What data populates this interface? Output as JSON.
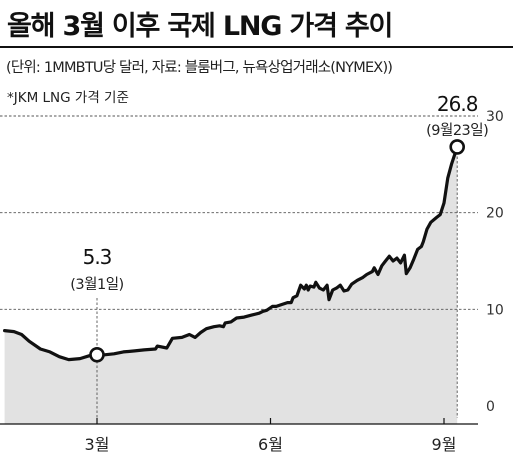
{
  "header": {
    "title": "올해 3월 이후 국제 LNG 가격 추이",
    "subtitle": "(단위: 1MMBTU당 달러, 자료: 블룸버그, 뉴욕상업거래소(NYMEX))"
  },
  "colors": {
    "line": "#111111",
    "area": "#e2e2e2",
    "grid": "#555555",
    "marker_fill": "#ffffff"
  },
  "chart_data": {
    "type": "area",
    "footnote": "*JKM LNG 가격 기준",
    "y_axis": {
      "ticks": [
        0,
        10,
        20,
        30
      ],
      "ylim": [
        0,
        30
      ],
      "side": "right"
    },
    "x_axis": {
      "ticks": [
        {
          "label": "3월",
          "day": 0
        },
        {
          "label": "6월",
          "day": 92
        },
        {
          "label": "9월",
          "day": 184
        }
      ],
      "xlim": [
        -49,
        206
      ]
    },
    "grid": "dashed horizontal",
    "series": [
      {
        "values": [
          [
            -49,
            7.8
          ],
          [
            -44,
            7.7
          ],
          [
            -40,
            7.4
          ],
          [
            -36,
            6.7
          ],
          [
            -30,
            5.9
          ],
          [
            -25,
            5.6
          ],
          [
            -20,
            5.1
          ],
          [
            -15,
            4.8
          ],
          [
            -9,
            4.9
          ],
          [
            -4,
            5.2
          ],
          [
            0,
            5.3
          ],
          [
            4,
            5.3
          ],
          [
            9,
            5.4
          ],
          [
            14,
            5.6
          ],
          [
            20,
            5.7
          ],
          [
            25,
            5.8
          ],
          [
            31,
            5.9
          ],
          [
            32,
            6.2
          ],
          [
            37,
            6.0
          ],
          [
            40,
            7.0
          ],
          [
            45,
            7.1
          ],
          [
            49,
            7.4
          ],
          [
            52,
            7.1
          ],
          [
            55,
            7.6
          ],
          [
            58,
            8.0
          ],
          [
            62,
            8.2
          ],
          [
            65,
            8.3
          ],
          [
            67,
            8.2
          ],
          [
            68,
            8.6
          ],
          [
            71,
            8.7
          ],
          [
            74,
            9.1
          ],
          [
            78,
            9.2
          ],
          [
            82,
            9.4
          ],
          [
            86,
            9.6
          ],
          [
            88,
            9.8
          ],
          [
            90,
            9.9
          ],
          [
            93,
            10.3
          ],
          [
            95,
            10.3
          ],
          [
            98,
            10.5
          ],
          [
            101,
            10.7
          ],
          [
            103,
            10.7
          ],
          [
            104,
            11.2
          ],
          [
            106,
            11.4
          ],
          [
            108,
            12.5
          ],
          [
            110,
            12.1
          ],
          [
            111,
            12.5
          ],
          [
            112,
            12.0
          ],
          [
            113,
            12.4
          ],
          [
            115,
            12.3
          ],
          [
            116,
            12.8
          ],
          [
            118,
            12.2
          ],
          [
            120,
            12.0
          ],
          [
            122,
            12.5
          ],
          [
            123,
            11.0
          ],
          [
            125,
            12.0
          ],
          [
            127,
            12.2
          ],
          [
            129,
            12.5
          ],
          [
            131,
            11.9
          ],
          [
            133,
            12.0
          ],
          [
            135,
            12.6
          ],
          [
            138,
            13.0
          ],
          [
            141,
            13.3
          ],
          [
            143,
            13.6
          ],
          [
            146,
            13.9
          ],
          [
            147,
            14.3
          ],
          [
            149,
            13.6
          ],
          [
            151,
            14.5
          ],
          [
            153,
            15.0
          ],
          [
            155,
            15.5
          ],
          [
            157,
            15.0
          ],
          [
            159,
            15.3
          ],
          [
            161,
            14.8
          ],
          [
            163,
            15.6
          ],
          [
            164,
            13.7
          ],
          [
            166,
            14.3
          ],
          [
            168,
            15.2
          ],
          [
            170,
            16.2
          ],
          [
            172,
            16.5
          ],
          [
            173,
            17.0
          ],
          [
            175,
            18.3
          ],
          [
            177,
            19.0
          ],
          [
            180,
            19.5
          ],
          [
            182,
            19.8
          ],
          [
            184,
            21.0
          ],
          [
            186,
            23.6
          ],
          [
            188,
            25.0
          ],
          [
            190,
            26.2
          ],
          [
            191,
            26.8
          ]
        ]
      }
    ],
    "annotations": [
      {
        "value": "5.3",
        "date": "(3월1일)",
        "day": 0,
        "y": 5.3
      },
      {
        "value": "26.8",
        "date": "(9월23일)",
        "day": 191,
        "y": 26.8
      }
    ]
  }
}
